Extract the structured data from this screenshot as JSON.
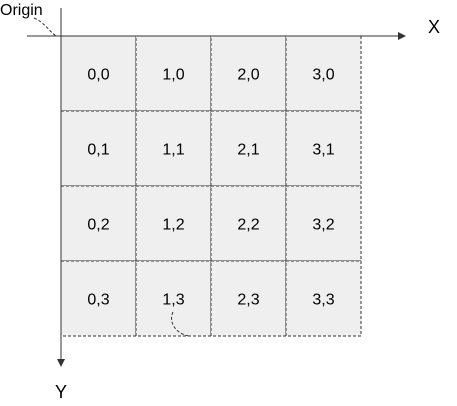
{
  "labels": {
    "origin": "Origin",
    "x_axis": "X",
    "y_axis": "Y"
  },
  "grid": {
    "columns": 4,
    "rows": 4,
    "cells": [
      [
        "0,0",
        "1,0",
        "2,0",
        "3,0"
      ],
      [
        "0,1",
        "1,1",
        "2,1",
        "3,1"
      ],
      [
        "0,2",
        "1,2",
        "2,2",
        "3,2"
      ],
      [
        "0,3",
        "1,3",
        "2,3",
        "3,3"
      ]
    ]
  },
  "colors": {
    "cell_fill": "#efefef",
    "line": "#333333",
    "text": "#000000"
  }
}
